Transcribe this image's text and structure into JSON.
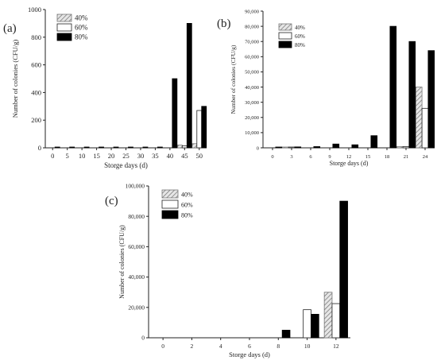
{
  "figure": {
    "panels": [
      "(a)",
      "(b)",
      "(c)"
    ]
  },
  "colors": {
    "s40_fill": "#d9d9d9",
    "s40_stroke": "#777777",
    "s60_fill": "#ffffff",
    "s80_fill": "#000000",
    "axis": "#222222"
  },
  "chart_data": [
    {
      "panel": "(a)",
      "type": "bar",
      "xlabel": "Storge days (d)",
      "ylabel": "Number of colonies (CFU/g)",
      "categories": [
        "0",
        "5",
        "10",
        "15",
        "20",
        "25",
        "30",
        "35",
        "40",
        "45",
        "50"
      ],
      "yticks": [
        "0",
        "200",
        "400",
        "600",
        "800",
        "1000"
      ],
      "ylim": [
        0,
        1000
      ],
      "legend": {
        "position": "top-left",
        "entries": [
          "40%",
          "60%",
          "80%"
        ]
      },
      "series": [
        {
          "name": "40%",
          "values": [
            0,
            0,
            0,
            0,
            0,
            0,
            0,
            0,
            0,
            20,
            30
          ]
        },
        {
          "name": "60%",
          "values": [
            0,
            0,
            0,
            0,
            0,
            0,
            0,
            0,
            0,
            15,
            270
          ]
        },
        {
          "name": "80%",
          "values": [
            3,
            2,
            2,
            2,
            2,
            2,
            2,
            2,
            500,
            900,
            300
          ]
        }
      ]
    },
    {
      "panel": "(b)",
      "type": "bar",
      "xlabel": "Storge days (d)",
      "ylabel": "Number of colonies (CFU/g)",
      "categories": [
        "0",
        "3",
        "6",
        "9",
        "12",
        "15",
        "18",
        "21",
        "24"
      ],
      "yticks": [
        "0",
        "10,000",
        "20,000",
        "30,000",
        "40,000",
        "50,000",
        "60,000",
        "70,000",
        "80,000",
        "90,000"
      ],
      "ylim": [
        0,
        90000
      ],
      "legend": {
        "position": "top-left",
        "entries": [
          "40%",
          "60%",
          "80%"
        ]
      },
      "series": [
        {
          "name": "40%",
          "values": [
            0,
            300,
            0,
            0,
            0,
            0,
            0,
            800,
            40000
          ]
        },
        {
          "name": "60%",
          "values": [
            0,
            200,
            0,
            0,
            0,
            0,
            0,
            800,
            26000
          ]
        },
        {
          "name": "80%",
          "values": [
            200,
            600,
            800,
            2500,
            2000,
            8000,
            80000,
            70000,
            64000
          ]
        }
      ]
    },
    {
      "panel": "(c)",
      "type": "bar",
      "xlabel": "Storge days (d)",
      "ylabel": "Number of colonies (CFU/g)",
      "categories": [
        "0",
        "2",
        "4",
        "6",
        "8",
        "10",
        "12"
      ],
      "yticks": [
        "0",
        "20,000",
        "40,000",
        "60,000",
        "80,000",
        "100,000"
      ],
      "ylim": [
        0,
        100000
      ],
      "legend": {
        "position": "top-left",
        "entries": [
          "40%",
          "60%",
          "80%"
        ]
      },
      "series": [
        {
          "name": "40%",
          "values": [
            0,
            0,
            0,
            0,
            0,
            0,
            30000
          ]
        },
        {
          "name": "60%",
          "values": [
            0,
            0,
            0,
            0,
            0,
            18500,
            22500
          ]
        },
        {
          "name": "80%",
          "values": [
            0,
            0,
            0,
            0,
            5000,
            15500,
            90000
          ]
        }
      ]
    }
  ]
}
